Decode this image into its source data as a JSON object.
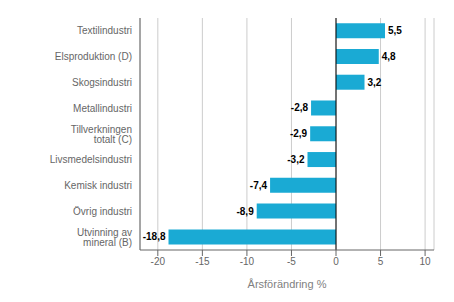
{
  "chart_data": {
    "type": "bar",
    "orientation": "horizontal",
    "categories": [
      "Utvinning av mineral (B)",
      "Övrig industri",
      "Kemisk industri",
      "Livsmedelsindustri",
      "Tillverkningen totalt (C)",
      "Metallindustri",
      "Skogsindustri",
      "Elsproduktion (D)",
      "Textilindustri"
    ],
    "values": [
      -18.8,
      -8.9,
      -7.4,
      -3.2,
      -2.9,
      -2.8,
      3.2,
      4.8,
      5.5
    ],
    "value_labels": [
      "-18,8",
      "-8,9",
      "-7,4",
      "-3,2",
      "-2,9",
      "-2,8",
      "3,2",
      "4,8",
      "5,5"
    ],
    "data_labels": true,
    "color": "#1AAAD4",
    "xlabel": "Årsförändring %",
    "xlim": [
      -22,
      11
    ],
    "xticks": [
      -20,
      -15,
      -10,
      -5,
      0,
      5,
      10
    ],
    "grid": true
  }
}
